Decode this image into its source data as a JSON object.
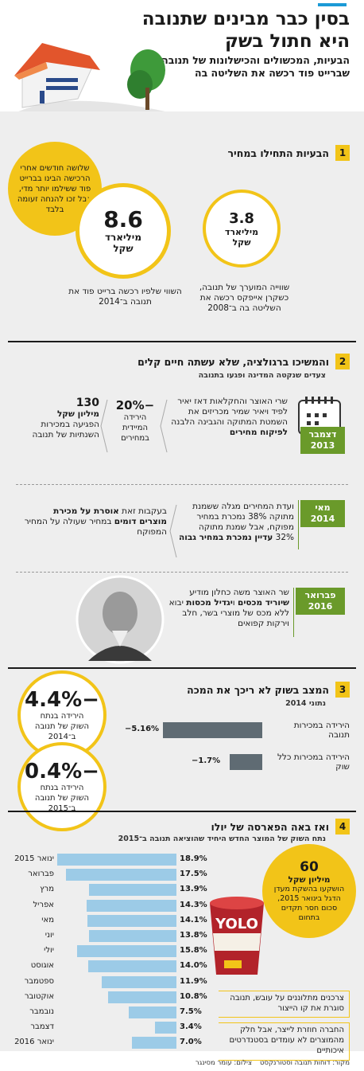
{
  "header": {
    "title": "בסין כבר מבינים שתנובה היא חתול בשק",
    "subtitle": "הבעיות, המכשולים והכישלונות של תנובה מאז שברייט פוד רכשה את השליטה בה"
  },
  "section1": {
    "num": "1",
    "title": "הבעיות התחילו במחיר",
    "callout": "שלושה חודשים אחרי הרכישה הבינו בברייט פוד ששילמו יותר מדי, אבל זכו להנחה זעומה בלבד",
    "left_circle": {
      "value": "8.6",
      "unit": "מיליארד שקל",
      "caption": "השווי שלפיו רכשה ברייט פוד את תנובה ב־2014"
    },
    "right_circle": {
      "value": "3.8",
      "unit": "מיליארד שקל",
      "caption": "שווייה המוערך של תנובה, כשקרן אייפקס רכשה את השליטה בה ב־2008"
    }
  },
  "section2": {
    "num": "2",
    "title": "והמשיכו ברגולציה, שלא עשתה חיים קלים",
    "subtitle": "צעדים שנקטה המדינה ופגעו בתנובה",
    "events": [
      {
        "date": "דצמבר 2013",
        "text": "שרי האוצר והחקלאות דאז יאיר לפיד ויאיר שמיר מכריזים את השמטת המתוקה והגבינה הלבנה",
        "text_bold": "לפיקוח מחירים",
        "mid_value": "−20%",
        "mid_text": "הירידה המיידית במחירים",
        "left_value": "130",
        "left_unit": "מיליון שקל",
        "left_text": "הפגיעה במכירות השנתיות של תנובה"
      },
      {
        "date": "מאי 2014",
        "text": "ועדת המחירים מגלה ששמנת מתוקה 38% נמכרת במחיר מפוקח, אבל שמנת מתוקה 32%",
        "text_bold": "עדיין נמכרת במחיר גבוה",
        "left_text_a": "בעקבות זאת",
        "left_bold": "אוסרת על מכירת מוצרים דומים",
        "left_text_b": "במחיר שעולה על המחיר המפוקח"
      },
      {
        "date": "פברואר 2016",
        "text_a": "שר האוצר משה כחלון מודיע",
        "text_bold_a": "שיוריד מכסים",
        "text_b": "ו",
        "text_bold_b": "יגדיל מכסות",
        "text_c": "יבוא ללא מכס של מוצרי בשר, חלב וירקות קפואים"
      }
    ]
  },
  "section3": {
    "num": "3",
    "title": "המצב בשוק לא ריכך את המכה",
    "subtitle": "נתוני 2014",
    "circle_top": {
      "value": "−4.4%",
      "caption": "הירידה בנתח השוק של תנובה ב־2014"
    },
    "circle_bottom": {
      "value": "−0.4%",
      "caption": "הירידה בנתח השוק של תנובה ב־2015"
    },
    "bars": [
      {
        "label": "הירידה במכירות תנובה",
        "value": "−5.16%",
        "num": 5.16
      },
      {
        "label": "הירידה במכירות כלל שוק",
        "value": "−1.7%",
        "num": 1.7
      }
    ]
  },
  "section4": {
    "num": "4",
    "title": "ואז באה הפארסה של יולו",
    "subtitle": "נתח השוק של המוצר החדש היחיד שהוציאה תנובה ב־2015",
    "callout_value": "60",
    "callout_unit": "מיליון שקל",
    "callout_text": "הושקעו בהשקת מעדן הדגל בינואר 2015, סכום חסר תקדים בתחום",
    "note1": "צרכנים מתלוננים על עובש, תנובה סוגרת את קו הייצור",
    "note2": "החברה חוזרת לייצר, אבל חלק מהמוצרים לא עומדים בסטנדרטים איכותיים",
    "chart_data": {
      "type": "bar",
      "categories": [
        "ינואר 2015",
        "פברואר",
        "מרץ",
        "אפריל",
        "מאי",
        "יוני",
        "יולי",
        "אוגוסט",
        "ספטמבר",
        "אוקטובר",
        "נובמבר",
        "דצמבר",
        "ינואר 2016"
      ],
      "values": [
        18.9,
        17.5,
        13.9,
        14.3,
        14.1,
        13.8,
        15.8,
        14.0,
        11.9,
        10.8,
        7.5,
        3.4,
        7.0
      ],
      "labels": [
        "18.9%",
        "17.5%",
        "13.9%",
        "14.3%",
        "14.1%",
        "13.8%",
        "15.8%",
        "14.0%",
        "11.9%",
        "10.8%",
        "7.5%",
        "3.4%",
        "7.0%"
      ],
      "title": "",
      "xlabel": "",
      "ylabel": ""
    },
    "product_label": "YOLO"
  },
  "footer": {
    "source": "מקור: דוחות תנובה וסטורנקסט",
    "credit": "צילום: עומר מסינגר"
  },
  "colors": {
    "yellow": "#f2c418",
    "green": "#6a9a2a",
    "blue_bar": "#9ccbe7",
    "gray_bar": "#5f6b73"
  }
}
